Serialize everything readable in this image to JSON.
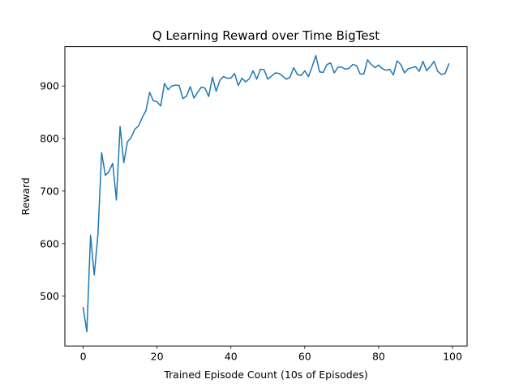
{
  "chart_data": {
    "type": "line",
    "title": "Q Learning Reward over Time BigTest",
    "xlabel": "Trained Episode Count (10s of Episodes)",
    "ylabel": "Reward",
    "xlim": [
      -4.95,
      103.95
    ],
    "ylim": [
      405,
      975
    ],
    "xticks": [
      0,
      20,
      40,
      60,
      80,
      100
    ],
    "yticks": [
      500,
      600,
      700,
      800,
      900
    ],
    "grid": false,
    "series": [
      {
        "color": "#1f77b4",
        "x": [
          0,
          1,
          2,
          3,
          4,
          5,
          6,
          7,
          8,
          9,
          10,
          11,
          12,
          13,
          14,
          15,
          16,
          17,
          18,
          19,
          20,
          21,
          22,
          23,
          24,
          25,
          26,
          27,
          28,
          29,
          30,
          31,
          32,
          33,
          34,
          35,
          36,
          37,
          38,
          39,
          40,
          41,
          42,
          43,
          44,
          45,
          46,
          47,
          48,
          49,
          50,
          51,
          52,
          53,
          54,
          55,
          56,
          57,
          58,
          59,
          60,
          61,
          62,
          63,
          64,
          65,
          66,
          67,
          68,
          69,
          70,
          71,
          72,
          73,
          74,
          75,
          76,
          77,
          78,
          79,
          80,
          81,
          82,
          83,
          84,
          85,
          86,
          87,
          88,
          89,
          90,
          91,
          92,
          93,
          94,
          95,
          96,
          97,
          98,
          99
        ],
        "values": [
          478,
          432,
          616,
          540,
          617,
          773,
          730,
          737,
          753,
          683,
          823,
          754,
          794,
          802,
          818,
          824,
          840,
          853,
          888,
          872,
          870,
          862,
          905,
          893,
          900,
          902,
          901,
          876,
          881,
          899,
          877,
          888,
          898,
          896,
          880,
          917,
          890,
          911,
          918,
          915,
          915,
          924,
          901,
          915,
          908,
          914,
          929,
          913,
          932,
          931,
          913,
          919,
          925,
          924,
          919,
          913,
          917,
          935,
          922,
          920,
          929,
          918,
          937,
          958,
          927,
          926,
          941,
          944,
          925,
          936,
          936,
          932,
          934,
          941,
          939,
          923,
          923,
          950,
          941,
          935,
          940,
          933,
          930,
          932,
          921,
          948,
          941,
          925,
          933,
          935,
          937,
          928,
          947,
          929,
          937,
          947,
          928,
          922,
          924,
          942
        ]
      }
    ]
  }
}
